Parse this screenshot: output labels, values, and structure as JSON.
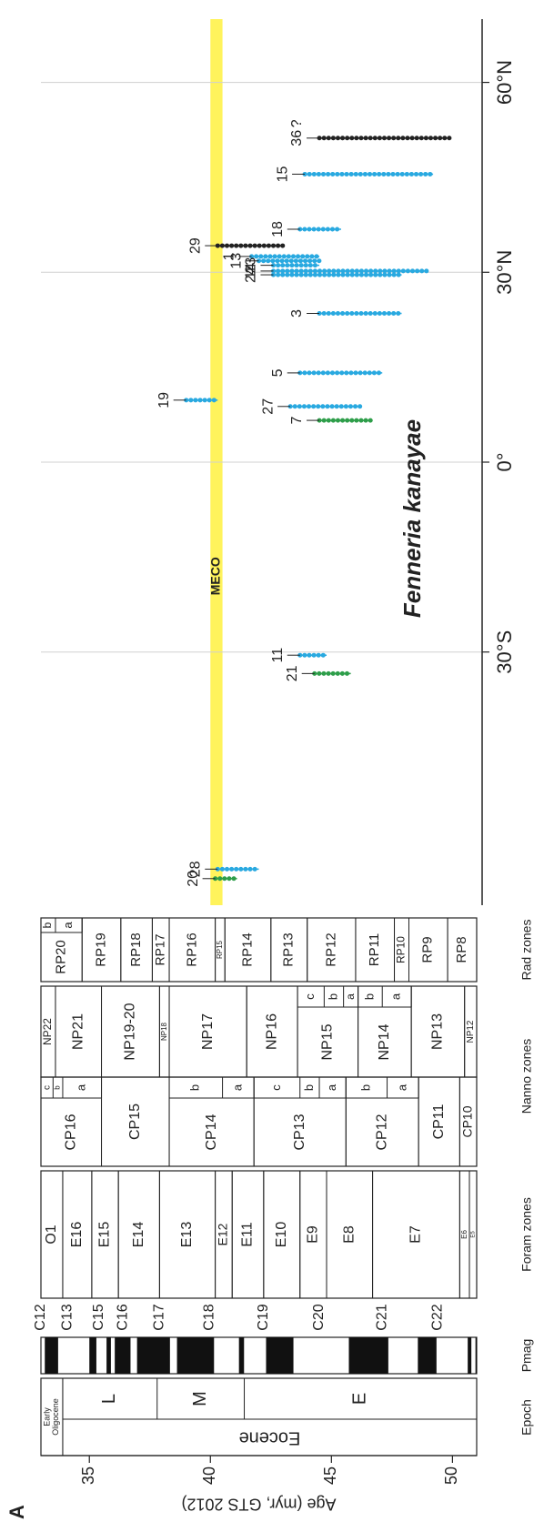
{
  "chart_data": {
    "type": "range",
    "label": "A",
    "title": "Fenneria kanayae",
    "y_label": "Age (myr, GTS 2012)",
    "ylim": [
      33,
      51
    ],
    "yticks": [
      35,
      40,
      45,
      50
    ],
    "xlim": [
      -70,
      70
    ],
    "xticks": [
      {
        "value": -30,
        "label": "30°S"
      },
      {
        "value": 0,
        "label": "0°"
      },
      {
        "value": 30,
        "label": "30°N"
      },
      {
        "value": 60,
        "label": "60°N"
      }
    ],
    "grid": true,
    "band": {
      "label": "MECO",
      "ages": [
        40.0,
        40.5
      ],
      "color": "#fff35c"
    },
    "series": [
      {
        "name": "36",
        "color": "#222222",
        "lat": 51.2,
        "ages": [
          44.5,
          49.9
        ],
        "annotation": "?"
      },
      {
        "name": "15",
        "color": "#29a9e0",
        "lat": 45.5,
        "ages": [
          43.9,
          49.2
        ]
      },
      {
        "name": "18",
        "color": "#29a9e0",
        "lat": 36.8,
        "ages": [
          43.7,
          45.4
        ]
      },
      {
        "name": "29",
        "color": "#222222",
        "lat": 34.2,
        "ages": [
          40.3,
          43.0
        ]
      },
      {
        "name": "1",
        "color": "#29a9e0",
        "lat": 32.5,
        "ages": [
          41.7,
          44.5
        ]
      },
      {
        "name": "13",
        "color": "#29a9e0",
        "lat": 31.8,
        "ages": [
          42.0,
          44.5
        ]
      },
      {
        "name": "23",
        "color": "#29a9e0",
        "lat": 31.1,
        "ages": [
          42.6,
          44.5
        ]
      },
      {
        "name": "14",
        "color": "#29a9e0",
        "lat": 30.2,
        "ages": [
          42.6,
          49.0
        ]
      },
      {
        "name": "24",
        "color": "#29a9e0",
        "lat": 29.6,
        "ages": [
          42.6,
          47.9
        ]
      },
      {
        "name": "3",
        "color": "#29a9e0",
        "lat": 23.5,
        "ages": [
          44.5,
          47.9
        ]
      },
      {
        "name": "5",
        "color": "#29a9e0",
        "lat": 14.1,
        "ages": [
          43.7,
          47.1
        ]
      },
      {
        "name": "19",
        "color": "#29a9e0",
        "lat": 9.8,
        "ages": [
          39.0,
          40.3
        ]
      },
      {
        "name": "27",
        "color": "#29a9e0",
        "lat": 8.8,
        "ages": [
          43.3,
          46.2
        ]
      },
      {
        "name": "7",
        "color": "#2e9e4a",
        "lat": 6.6,
        "ages": [
          44.5,
          46.7
        ]
      },
      {
        "name": "11",
        "color": "#29a9e0",
        "lat": -30.5,
        "ages": [
          43.7,
          44.8
        ]
      },
      {
        "name": "21",
        "color": "#2e9e4a",
        "lat": -33.4,
        "ages": [
          44.3,
          45.8
        ]
      },
      {
        "name": "28",
        "color": "#29a9e0",
        "lat": -64.3,
        "ages": [
          40.3,
          42.0
        ]
      },
      {
        "name": "20",
        "color": "#2e9e4a",
        "lat": -65.8,
        "ages": [
          40.2,
          41.1
        ]
      }
    ]
  },
  "stratigraphy": {
    "epoch": {
      "header": "Epoch",
      "zones": [
        {
          "lines": [
            "Early",
            "Oligocene"
          ],
          "ages": [
            33,
            33.9
          ]
        },
        {
          "name": "Eocene",
          "ages": [
            33.9,
            51
          ],
          "subzones": [
            {
              "name": "L",
              "ages": [
                33.9,
                37.8
              ]
            },
            {
              "name": "M",
              "ages": [
                37.8,
                41.4
              ]
            },
            {
              "name": "E",
              "ages": [
                41.4,
                51
              ]
            }
          ]
        }
      ]
    },
    "pmag": {
      "header": "Pmag",
      "normal": [
        [
          33.16,
          33.71
        ],
        [
          35.0,
          35.29
        ],
        [
          35.71,
          35.89
        ],
        [
          36.05,
          36.7
        ],
        [
          36.97,
          38.33
        ],
        [
          38.62,
          40.15
        ],
        [
          41.18,
          41.39
        ],
        [
          42.3,
          43.43
        ],
        [
          45.72,
          47.35
        ],
        [
          48.57,
          49.34
        ],
        [
          50.63,
          50.78
        ],
        [
          50.95,
          51.0
        ]
      ],
      "chrons": [
        {
          "name": "C12",
          "age": 33.0
        },
        {
          "name": "C13",
          "age": 34.1
        },
        {
          "name": "C15",
          "age": 35.4
        },
        {
          "name": "C16",
          "age": 36.4
        },
        {
          "name": "C17",
          "age": 37.9
        },
        {
          "name": "C18",
          "age": 39.96
        },
        {
          "name": "C19",
          "age": 42.2
        },
        {
          "name": "C20",
          "age": 44.5
        },
        {
          "name": "C21",
          "age": 47.1
        },
        {
          "name": "C22",
          "age": 49.4
        }
      ]
    },
    "foram": {
      "header": "Foram zones",
      "zones": [
        {
          "name": "O1",
          "ages": [
            33,
            33.9
          ]
        },
        {
          "name": "E16",
          "ages": [
            33.9,
            35.1
          ]
        },
        {
          "name": "E15",
          "ages": [
            35.1,
            36.2
          ]
        },
        {
          "name": "E14",
          "ages": [
            36.2,
            37.9
          ]
        },
        {
          "name": "E13",
          "ages": [
            37.9,
            40.2
          ]
        },
        {
          "name": "E12",
          "ages": [
            40.2,
            40.9
          ]
        },
        {
          "name": "E11",
          "ages": [
            40.9,
            42.2
          ]
        },
        {
          "name": "E10",
          "ages": [
            42.2,
            43.7
          ]
        },
        {
          "name": "E9",
          "ages": [
            43.7,
            44.8
          ]
        },
        {
          "name": "E8",
          "ages": [
            44.8,
            46.7
          ]
        },
        {
          "name": "E7",
          "ages": [
            46.7,
            50.3
          ]
        },
        {
          "name": "E6",
          "ages": [
            50.3,
            50.7
          ]
        },
        {
          "name": "E5",
          "ages": [
            50.7,
            51
          ]
        }
      ]
    },
    "nanno": {
      "header": "Nanno zones",
      "cp": [
        {
          "name": "CP16",
          "ages": [
            33,
            35.5
          ],
          "subzones": [
            {
              "name": "c",
              "ages": [
                33,
                33.5
              ]
            },
            {
              "name": "b",
              "ages": [
                33.5,
                33.9
              ]
            },
            {
              "name": "a",
              "ages": [
                33.9,
                35.5
              ]
            }
          ]
        },
        {
          "name": "CP15",
          "ages": [
            35.5,
            38.3
          ]
        },
        {
          "name": "CP14",
          "ages": [
            38.3,
            41.8
          ],
          "subzones": [
            {
              "name": "b",
              "ages": [
                38.3,
                40.5
              ]
            },
            {
              "name": "a",
              "ages": [
                40.5,
                41.8
              ]
            }
          ]
        },
        {
          "name": "CP13",
          "ages": [
            41.8,
            45.6
          ],
          "subzones": [
            {
              "name": "c",
              "ages": [
                41.8,
                43.7
              ]
            },
            {
              "name": "b",
              "ages": [
                43.7,
                44.5
              ]
            },
            {
              "name": "a",
              "ages": [
                44.5,
                45.6
              ]
            }
          ]
        },
        {
          "name": "CP12",
          "ages": [
            45.6,
            48.6
          ],
          "subzones": [
            {
              "name": "b",
              "ages": [
                45.6,
                47.3
              ]
            },
            {
              "name": "a",
              "ages": [
                47.3,
                48.6
              ]
            }
          ]
        },
        {
          "name": "CP11",
          "ages": [
            48.6,
            50.3
          ]
        },
        {
          "name": "CP10",
          "ages": [
            50.3,
            51
          ]
        }
      ],
      "np": [
        {
          "name": "NP22",
          "ages": [
            33,
            33.6
          ]
        },
        {
          "name": "NP21",
          "ages": [
            33.6,
            35.5
          ]
        },
        {
          "name": "NP19-20",
          "ages": [
            35.5,
            37.9
          ]
        },
        {
          "name": "NP18",
          "ages": [
            37.9,
            38.3
          ]
        },
        {
          "name": "NP17",
          "ages": [
            38.3,
            41.5
          ]
        },
        {
          "name": "NP16",
          "ages": [
            41.5,
            43.6
          ]
        },
        {
          "name": "NP15",
          "ages": [
            43.6,
            46.1
          ],
          "subzones": [
            {
              "name": "c",
              "ages": [
                43.6,
                44.7
              ]
            },
            {
              "name": "b",
              "ages": [
                44.7,
                45.5
              ]
            },
            {
              "name": "a",
              "ages": [
                45.5,
                46.1
              ]
            }
          ]
        },
        {
          "name": "NP14",
          "ages": [
            46.1,
            48.3
          ],
          "subzones": [
            {
              "name": "b",
              "ages": [
                46.1,
                47.1
              ]
            },
            {
              "name": "a",
              "ages": [
                47.1,
                48.3
              ]
            }
          ]
        },
        {
          "name": "NP13",
          "ages": [
            48.3,
            50.5
          ]
        },
        {
          "name": "NP12",
          "ages": [
            50.5,
            51
          ]
        }
      ]
    },
    "rad": {
      "header": "Rad zones",
      "zones": [
        {
          "name": "RP20",
          "ages": [
            33,
            34.7
          ],
          "subzones": [
            {
              "name": "b",
              "ages": [
                33,
                33.6
              ]
            },
            {
              "name": "a",
              "ages": [
                33.6,
                34.7
              ]
            }
          ]
        },
        {
          "name": "RP19",
          "ages": [
            34.7,
            36.3
          ]
        },
        {
          "name": "RP18",
          "ages": [
            36.3,
            37.6
          ]
        },
        {
          "name": "RP17",
          "ages": [
            37.6,
            38.3
          ]
        },
        {
          "name": "RP16",
          "ages": [
            38.3,
            40.2
          ]
        },
        {
          "name": "RP15",
          "ages": [
            40.2,
            40.6
          ]
        },
        {
          "name": "RP14",
          "ages": [
            40.6,
            42.5
          ]
        },
        {
          "name": "RP13",
          "ages": [
            42.5,
            44.0
          ]
        },
        {
          "name": "RP12",
          "ages": [
            44.0,
            46.0
          ]
        },
        {
          "name": "RP11",
          "ages": [
            46.0,
            47.6
          ]
        },
        {
          "name": "RP10",
          "ages": [
            47.6,
            48.2
          ]
        },
        {
          "name": "RP9",
          "ages": [
            48.2,
            49.8
          ]
        },
        {
          "name": "RP8",
          "ages": [
            49.8,
            51
          ]
        }
      ]
    }
  }
}
